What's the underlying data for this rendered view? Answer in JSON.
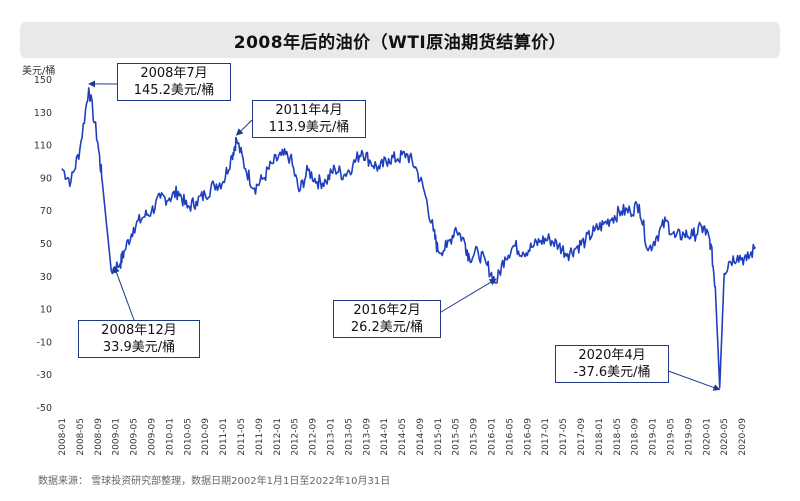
{
  "title": "2008年后的油价（WTI原油期货结算价）",
  "source": "数据来源：  雪球投资研究部整理，数据日期2002年1月1日至2022年10月31日",
  "colors": {
    "line": "#1f3fbf",
    "annotation_border": "#1f3a8a",
    "title_bg": "#e9e9e9"
  },
  "chart_data": {
    "type": "line",
    "title": "2008年后的油价（WTI原油期货结算价）",
    "ylabel": "美元/桶",
    "xlabel": "",
    "ylim": [
      -50,
      150
    ],
    "yticks": [
      150,
      130,
      110,
      90,
      70,
      50,
      30,
      10,
      -10,
      -30,
      -50
    ],
    "xtick_labels": [
      "2008-01",
      "2008-05",
      "2008-09",
      "2009-01",
      "2009-05",
      "2009-09",
      "2010-01",
      "2010-05",
      "2010-09",
      "2011-01",
      "2011-05",
      "2011-09",
      "2012-01",
      "2012-05",
      "2012-09",
      "2013-01",
      "2013-05",
      "2013-09",
      "2014-01",
      "2014-05",
      "2014-09",
      "2015-01",
      "2015-05",
      "2015-09",
      "2016-01",
      "2016-05",
      "2016-09",
      "2017-01",
      "2017-05",
      "2017-09",
      "2018-01",
      "2018-05",
      "2018-09",
      "2019-01",
      "2019-05",
      "2019-09",
      "2020-01",
      "2020-05",
      "2020-09"
    ],
    "grid": false,
    "legend": "none",
    "series": [
      {
        "x": [
          "2008-01",
          "2008-03",
          "2008-05",
          "2008-07",
          "2008-09",
          "2008-10",
          "2008-12",
          "2009-02",
          "2009-03",
          "2009-05",
          "2009-07",
          "2009-09",
          "2009-11",
          "2010-01",
          "2010-03",
          "2010-05",
          "2010-07",
          "2010-09",
          "2010-11",
          "2011-01",
          "2011-03",
          "2011-04",
          "2011-06",
          "2011-08",
          "2011-10",
          "2011-12",
          "2012-02",
          "2012-04",
          "2012-06",
          "2012-08",
          "2012-10",
          "2012-12",
          "2013-02",
          "2013-04",
          "2013-06",
          "2013-08",
          "2013-10",
          "2013-12",
          "2014-02",
          "2014-04",
          "2014-06",
          "2014-08",
          "2014-10",
          "2014-12",
          "2015-01",
          "2015-03",
          "2015-05",
          "2015-07",
          "2015-08",
          "2015-10",
          "2015-12",
          "2016-02",
          "2016-04",
          "2016-06",
          "2016-08",
          "2016-10",
          "2016-12",
          "2017-02",
          "2017-04",
          "2017-06",
          "2017-08",
          "2017-10",
          "2017-12",
          "2018-02",
          "2018-04",
          "2018-06",
          "2018-08",
          "2018-10",
          "2018-12",
          "2019-02",
          "2019-04",
          "2019-06",
          "2019-08",
          "2019-10",
          "2019-12",
          "2020-01",
          "2020-02",
          "2020-03",
          "2020-04",
          "2020-05",
          "2020-06",
          "2020-08",
          "2020-10",
          "2020-12"
        ],
        "values": [
          96,
          88,
          108,
          145.2,
          112,
          88,
          33.9,
          38,
          46,
          60,
          66,
          70,
          78,
          78,
          82,
          72,
          76,
          80,
          86,
          88,
          104,
          113.9,
          96,
          84,
          90,
          99,
          104,
          103,
          82,
          95,
          88,
          88,
          96,
          92,
          98,
          107,
          100,
          96,
          102,
          102,
          105,
          97,
          82,
          58,
          46,
          48,
          60,
          51,
          42,
          45,
          37,
          26.2,
          42,
          49,
          45,
          48,
          52,
          53,
          49,
          44,
          48,
          52,
          58,
          62,
          66,
          70,
          70,
          74,
          46,
          55,
          64,
          54,
          56,
          55,
          60,
          57,
          50,
          24,
          -37.6,
          32,
          39,
          43,
          40,
          48
        ]
      }
    ],
    "annotations": [
      {
        "label_line1": "2008年7月",
        "label_line2": "145.2美元/桶",
        "x": "2008-07",
        "y": 145.2
      },
      {
        "label_line1": "2011年4月",
        "label_line2": "113.9美元/桶",
        "x": "2011-04",
        "y": 113.9
      },
      {
        "label_line1": "2008年12月",
        "label_line2": "33.9美元/桶",
        "x": "2008-12",
        "y": 33.9
      },
      {
        "label_line1": "2016年2月",
        "label_line2": "26.2美元/桶",
        "x": "2016-02",
        "y": 26.2
      },
      {
        "label_line1": "2020年4月",
        "label_line2": "-37.6美元/桶",
        "x": "2020-04",
        "y": -37.6
      }
    ]
  }
}
